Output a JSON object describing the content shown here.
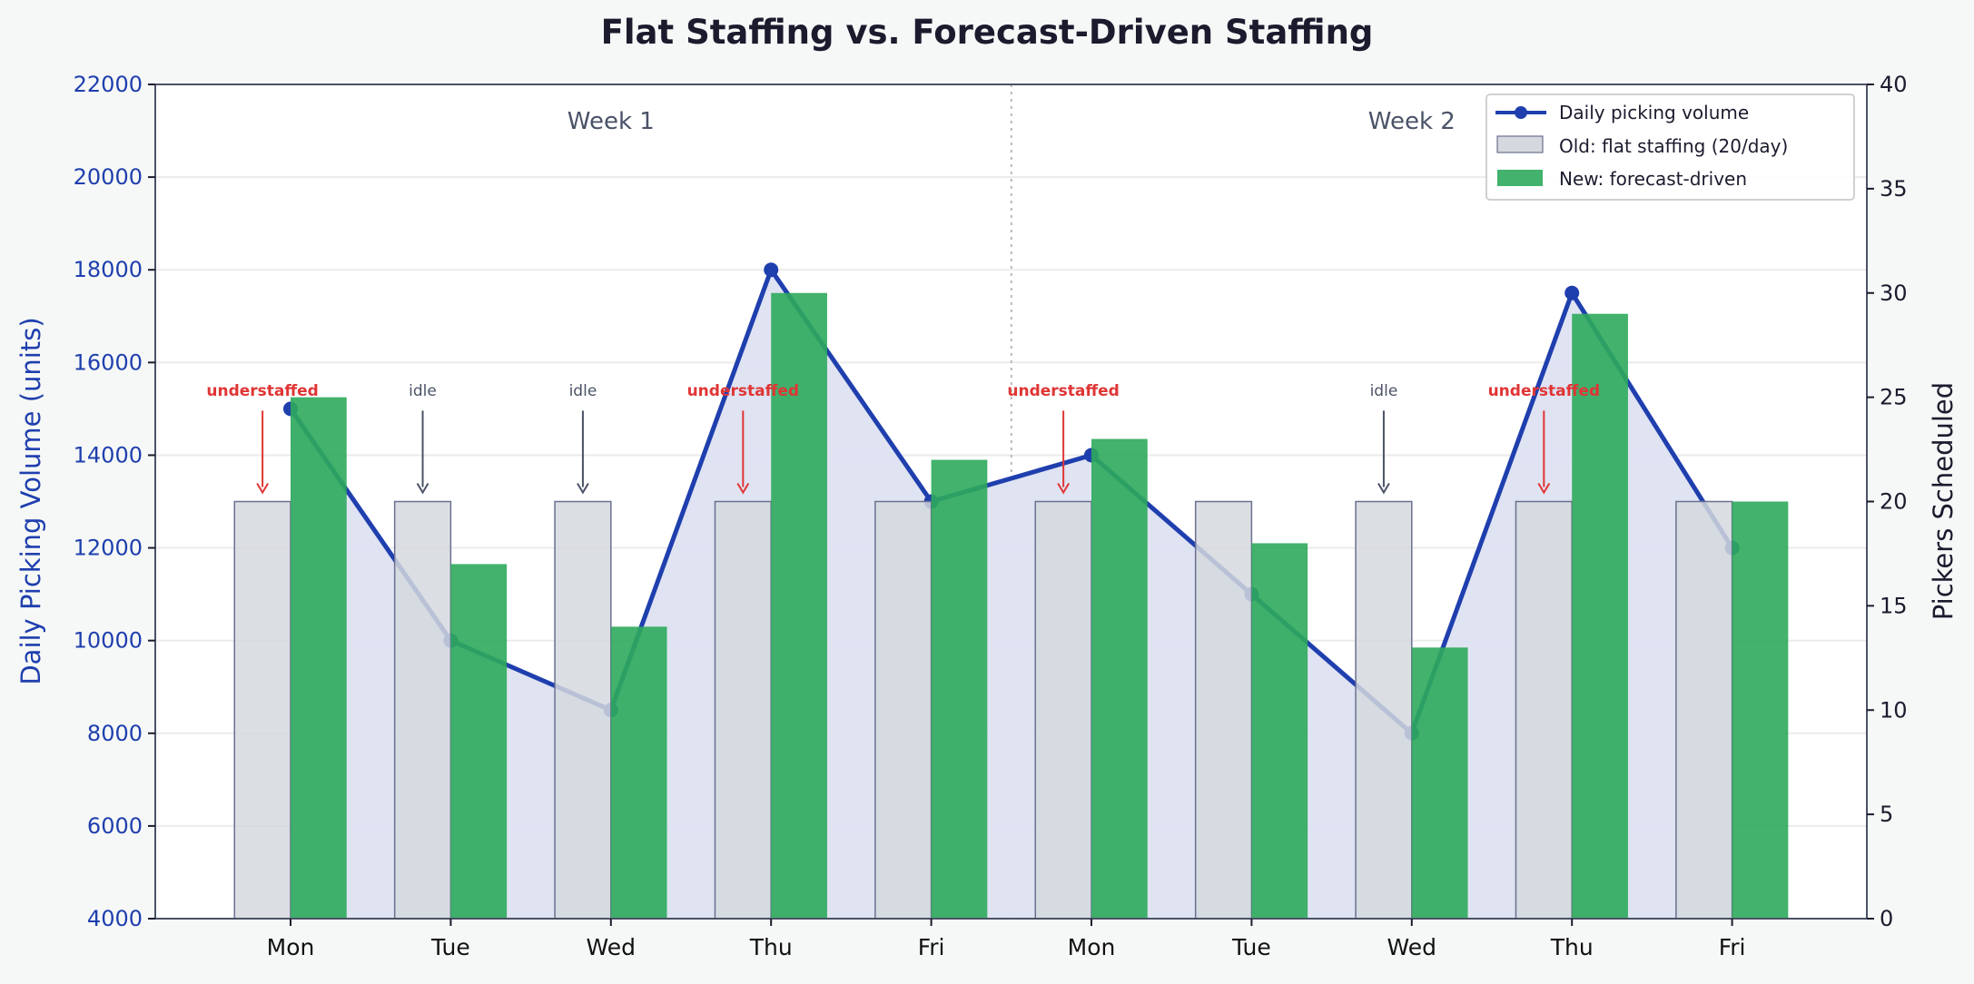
{
  "chart_data": {
    "type": "bar",
    "title": "Flat Staffing vs. Forecast-Driven Staffing",
    "categories": [
      "Mon",
      "Tue",
      "Wed",
      "Thu",
      "Fri",
      "Mon",
      "Tue",
      "Wed",
      "Thu",
      "Fri"
    ],
    "ylabel_left": "Daily Picking Volume (units)",
    "ylabel_right": "Pickers Scheduled",
    "ylim_left": [
      4000,
      22000
    ],
    "ylim_right": [
      0,
      40
    ],
    "yticks_left": [
      "4000",
      "6000",
      "8000",
      "10000",
      "12000",
      "14000",
      "16000",
      "18000",
      "20000",
      "22000"
    ],
    "yticks_right": [
      "0",
      "5",
      "10",
      "15",
      "20",
      "25",
      "30",
      "35",
      "40"
    ],
    "grid": "horizontal",
    "legend_position": "top-right",
    "series": [
      {
        "name": "Daily picking volume",
        "type": "line",
        "axis": "left",
        "color": "#1f3fae",
        "values": [
          15000,
          10000,
          8500,
          18000,
          13000,
          14000,
          11000,
          8000,
          17500,
          12000
        ]
      },
      {
        "name": "Old: flat staffing (20/day)",
        "type": "bar",
        "axis": "right",
        "color": "#d5d8de",
        "values": [
          20,
          20,
          20,
          20,
          20,
          20,
          20,
          20,
          20,
          20
        ]
      },
      {
        "name": "New: forecast-driven",
        "type": "bar",
        "axis": "right",
        "color": "#2eaa5c",
        "values": [
          25,
          17,
          14,
          30,
          22,
          23,
          18,
          13,
          29,
          20
        ]
      }
    ],
    "week_labels": [
      {
        "text": "Week 1",
        "x": 2
      },
      {
        "text": "Week 2",
        "x": 7
      }
    ],
    "annotations": [
      {
        "index": 0,
        "text": "understaffed",
        "kind": "under"
      },
      {
        "index": 1,
        "text": "idle",
        "kind": "idle"
      },
      {
        "index": 2,
        "text": "idle",
        "kind": "idle"
      },
      {
        "index": 3,
        "text": "understaffed",
        "kind": "under"
      },
      {
        "index": 5,
        "text": "understaffed",
        "kind": "under"
      },
      {
        "index": 7,
        "text": "idle",
        "kind": "idle"
      },
      {
        "index": 8,
        "text": "understaffed",
        "kind": "under"
      }
    ],
    "colors": {
      "under": "#e03535",
      "idle": "#4a5266",
      "fill": "#dde1f1",
      "left_axis": "#1f3fae"
    }
  }
}
